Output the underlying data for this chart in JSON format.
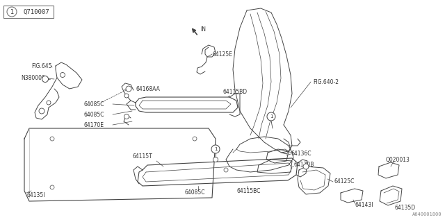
{
  "bg_color": "#ffffff",
  "line_color": "#444444",
  "text_color": "#333333",
  "fig_width": 6.4,
  "fig_height": 3.2,
  "dpi": 100,
  "title_box": {
    "circle_label": "1",
    "part_number": "Q710007"
  },
  "bottom_right_text": "A640001800",
  "label_fontsize": 5.8
}
